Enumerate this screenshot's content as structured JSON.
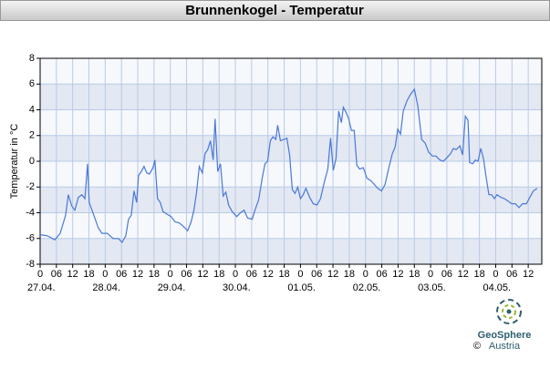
{
  "chart_data": {
    "type": "line",
    "title": "Brunnenkogel - Temperatur",
    "y_label": "Temperatur in °C",
    "x": [
      0,
      2.7,
      5.4,
      7.4,
      9.4,
      10.4,
      11.7,
      12.8,
      14.1,
      15.4,
      16.5,
      17.5,
      18.1,
      19.8,
      21.5,
      22.8,
      24.8,
      26.9,
      28.9,
      30.2,
      31.6,
      32.6,
      33.6,
      34.6,
      35.6,
      36.3,
      37.3,
      38.3,
      39.3,
      40.3,
      41.6,
      42.3,
      43.3,
      44.3,
      45.3,
      46.7,
      48.3,
      49.7,
      51.4,
      53.0,
      54.4,
      55.7,
      56.7,
      57.7,
      58.7,
      59.8,
      60.8,
      61.8,
      62.8,
      63.8,
      64.5,
      65.5,
      66.5,
      67.5,
      68.5,
      69.5,
      70.8,
      72.5,
      73.9,
      75.2,
      76.5,
      78.2,
      79.2,
      80.6,
      81.9,
      82.9,
      83.9,
      84.9,
      85.9,
      86.9,
      87.6,
      88.6,
      90.0,
      91.0,
      92.0,
      93.0,
      94.0,
      95.0,
      96.0,
      97.0,
      98.0,
      99.4,
      100.7,
      102.1,
      103.4,
      104.7,
      106.1,
      107.1,
      108.1,
      109.1,
      110.1,
      111.1,
      111.8,
      112.8,
      113.8,
      114.8,
      115.8,
      116.8,
      117.8,
      119.2,
      120.5,
      121.9,
      123.2,
      124.5,
      125.9,
      127.2,
      128.6,
      129.9,
      130.9,
      131.9,
      132.9,
      133.9,
      135.3,
      136.6,
      138.0,
      139.3,
      140.7,
      142.0,
      143.3,
      144.7,
      146.0,
      147.4,
      148.7,
      150.1,
      151.4,
      152.4,
      153.4,
      154.8,
      155.8,
      156.8,
      157.8,
      158.4,
      159.5,
      160.5,
      161.5,
      162.5,
      163.5,
      164.5,
      165.5,
      166.5,
      167.5,
      168.5,
      169.9,
      171.2,
      172.6,
      173.9,
      175.2,
      176.6,
      177.9,
      179.3,
      180.6,
      181.9,
      183.3
    ],
    "series": [
      {
        "name": "Temperatur",
        "color": "#4a78d8",
        "values": [
          -5.7,
          -5.8,
          -6.1,
          -5.6,
          -4.2,
          -2.6,
          -3.5,
          -3.8,
          -2.8,
          -2.6,
          -2.9,
          -0.2,
          -3.2,
          -4.2,
          -5.2,
          -5.6,
          -5.6,
          -6.0,
          -6.0,
          -6.3,
          -5.8,
          -4.5,
          -4.2,
          -2.3,
          -3.2,
          -1.1,
          -0.8,
          -0.4,
          -0.9,
          -1.0,
          -0.5,
          0.1,
          -2.9,
          -3.2,
          -3.9,
          -4.1,
          -4.3,
          -4.7,
          -4.8,
          -5.1,
          -5.4,
          -4.7,
          -3.8,
          -2.4,
          -0.4,
          -0.9,
          0.6,
          0.9,
          1.6,
          0.1,
          3.3,
          -0.8,
          -0.2,
          -2.7,
          -2.4,
          -3.4,
          -3.9,
          -4.3,
          -4.0,
          -3.8,
          -4.4,
          -4.5,
          -3.8,
          -3.0,
          -1.3,
          -0.2,
          0.0,
          1.6,
          1.9,
          1.7,
          2.8,
          1.6,
          1.7,
          1.8,
          0.5,
          -2.2,
          -2.5,
          -2.0,
          -2.9,
          -2.6,
          -2.1,
          -2.8,
          -3.3,
          -3.4,
          -2.9,
          -1.7,
          -0.6,
          1.8,
          -0.7,
          0.2,
          3.9,
          3.0,
          4.2,
          3.8,
          3.3,
          2.4,
          2.4,
          -0.3,
          -0.6,
          -0.5,
          -1.3,
          -1.5,
          -1.8,
          -2.1,
          -2.3,
          -1.8,
          -0.5,
          0.6,
          1.1,
          2.5,
          2.1,
          3.9,
          4.7,
          5.2,
          5.6,
          4.3,
          1.7,
          1.4,
          0.7,
          0.4,
          0.4,
          0.1,
          0.0,
          0.3,
          0.6,
          1.0,
          0.9,
          1.2,
          0.5,
          3.5,
          3.2,
          -0.1,
          -0.2,
          0.1,
          0.0,
          1.0,
          0.2,
          -1.3,
          -2.6,
          -2.6,
          -2.9,
          -2.6,
          -2.8,
          -2.9,
          -3.1,
          -3.3,
          -3.3,
          -3.6,
          -3.3,
          -3.3,
          -2.8,
          -2.3,
          -2.1
        ]
      }
    ],
    "xlim": [
      0,
      185
    ],
    "ylim": [
      -8,
      8
    ],
    "yticks": [
      -8,
      -6,
      -4,
      -2,
      0,
      2,
      4,
      6,
      8
    ],
    "xticks": [
      0,
      {
        "value": 6,
        "label": "06"
      },
      12,
      18,
      {
        "value": 24,
        "label": "0"
      },
      {
        "value": 30,
        "label": "06"
      },
      {
        "value": 36,
        "label": "12"
      },
      {
        "value": 42,
        "label": "18"
      },
      {
        "value": 48,
        "label": "0"
      },
      {
        "value": 54,
        "label": "06"
      },
      {
        "value": 60,
        "label": "12"
      },
      {
        "value": 66,
        "label": "18"
      },
      {
        "value": 72,
        "label": "0"
      },
      {
        "value": 78,
        "label": "06"
      },
      {
        "value": 84,
        "label": "12"
      },
      {
        "value": 90,
        "label": "18"
      },
      {
        "value": 96,
        "label": "0"
      },
      {
        "value": 102,
        "label": "06"
      },
      {
        "value": 108,
        "label": "12"
      },
      {
        "value": 114,
        "label": "18"
      },
      {
        "value": 120,
        "label": "0"
      },
      {
        "value": 126,
        "label": "06"
      },
      {
        "value": 132,
        "label": "12"
      },
      {
        "value": 138,
        "label": "18"
      },
      {
        "value": 144,
        "label": "0"
      },
      {
        "value": 150,
        "label": "06"
      },
      {
        "value": 156,
        "label": "12"
      },
      {
        "value": 162,
        "label": "18"
      },
      {
        "value": 168,
        "label": "0"
      },
      {
        "value": 174,
        "label": "06"
      },
      {
        "value": 180,
        "label": "12"
      }
    ],
    "date_labels": [
      {
        "value": 0,
        "label": "27.04."
      },
      {
        "value": 24,
        "label": "28.04."
      },
      {
        "value": 48,
        "label": "29.04."
      },
      {
        "value": 72,
        "label": "30.04."
      },
      {
        "value": 96,
        "label": "01.05."
      },
      {
        "value": 120,
        "label": "02.05."
      },
      {
        "value": 144,
        "label": "03.05."
      },
      {
        "value": 168,
        "label": "04.05."
      }
    ],
    "grid": true,
    "logo": {
      "name": "GeoSphere",
      "country": "Austria",
      "copyright": "©"
    }
  }
}
